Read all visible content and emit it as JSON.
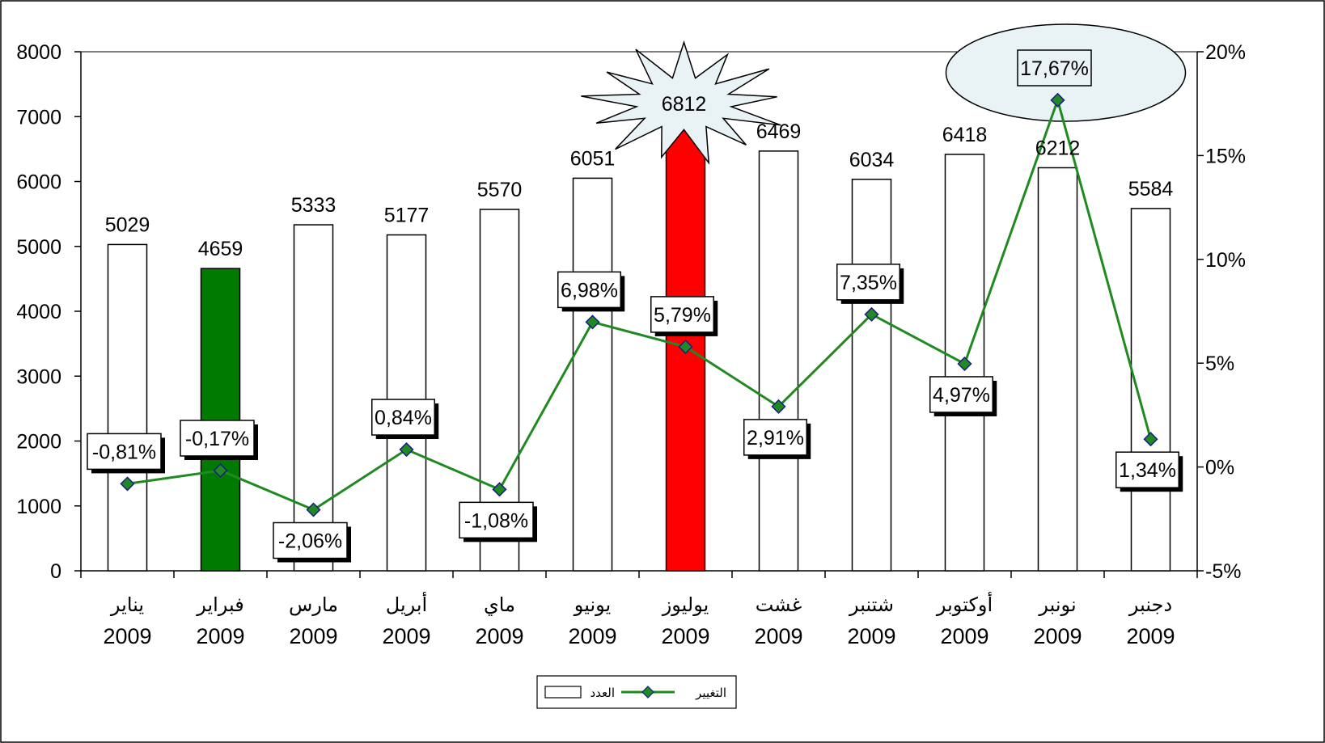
{
  "chart_data": {
    "type": "bar",
    "categories": [
      {
        "month": "يناير",
        "year": "2009"
      },
      {
        "month": "فبراير",
        "year": "2009"
      },
      {
        "month": "مارس",
        "year": "2009"
      },
      {
        "month": "أبريل",
        "year": "2009"
      },
      {
        "month": "ماي",
        "year": "2009"
      },
      {
        "month": "يونيو",
        "year": "2009"
      },
      {
        "month": "يوليوز",
        "year": "2009"
      },
      {
        "month": "غشت",
        "year": "2009"
      },
      {
        "month": "شتنبر",
        "year": "2009"
      },
      {
        "month": "أوكتوبر",
        "year": "2009"
      },
      {
        "month": "نونبر",
        "year": "2009"
      },
      {
        "month": "دجنبر",
        "year": "2009"
      }
    ],
    "series": [
      {
        "name": "العدد",
        "type": "bar",
        "axis": "left",
        "values": [
          5029,
          4659,
          5333,
          5177,
          5570,
          6051,
          6812,
          6469,
          6034,
          6418,
          6212,
          5584
        ],
        "labels": [
          "5029",
          "4659",
          "5333",
          "5177",
          "5570",
          "6051",
          "6812",
          "6469",
          "6034",
          "6418",
          "6212",
          "5584"
        ],
        "fill_colors": [
          "#ffffff",
          "#007a00",
          "#ffffff",
          "#ffffff",
          "#ffffff",
          "#ffffff",
          "#ff0000",
          "#ffffff",
          "#ffffff",
          "#ffffff",
          "#ffffff",
          "#ffffff"
        ]
      },
      {
        "name": "التغيير",
        "type": "line",
        "axis": "right",
        "values": [
          -0.81,
          -0.17,
          -2.06,
          0.84,
          -1.08,
          6.98,
          5.79,
          2.91,
          7.35,
          4.97,
          17.67,
          1.34
        ],
        "labels": [
          "-0,81%",
          "-0,17%",
          "-2,06%",
          "0,84%",
          "-1,08%",
          "6,98%",
          "5,79%",
          "2,91%",
          "7,35%",
          "4,97%",
          "17,67%",
          "1,34%"
        ],
        "label_side": [
          "above",
          "above",
          "below",
          "above",
          "below",
          "above",
          "above",
          "below",
          "above",
          "below",
          "above",
          "below"
        ],
        "line_color": "#1f8a1f",
        "marker_color": "#1f8a1f"
      }
    ],
    "y_left": {
      "min": 0,
      "max": 8000,
      "ticks": [
        0,
        1000,
        2000,
        3000,
        4000,
        5000,
        6000,
        7000,
        8000
      ],
      "tick_labels": [
        "0",
        "1000",
        "2000",
        "3000",
        "4000",
        "5000",
        "6000",
        "7000",
        "8000"
      ]
    },
    "y_right": {
      "min": -5,
      "max": 20,
      "ticks": [
        -5,
        0,
        5,
        10,
        15,
        20
      ],
      "tick_labels": [
        "-5%",
        "0%",
        "5%",
        "10%",
        "15%",
        "20%"
      ]
    },
    "highlights": [
      {
        "index": 6,
        "shape": "starburst",
        "series": "العدد"
      },
      {
        "index": 10,
        "shape": "ellipse",
        "series": "التغيير"
      }
    ],
    "grid": false,
    "legend_position": "bottom-center",
    "title": "",
    "xlabel": "",
    "ylabel": ""
  }
}
